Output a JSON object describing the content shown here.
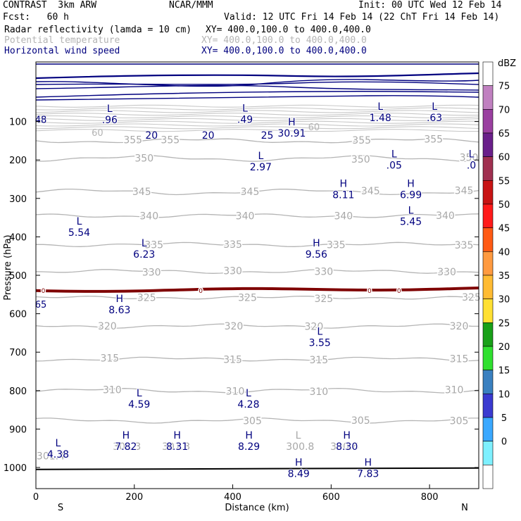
{
  "header": {
    "model": "CONTRAST  3km ARW",
    "org": "NCAR/MMM",
    "init": "Init: 00 UTC Wed 12 Feb 14",
    "fcst": "Fcst:   60 h",
    "valid": "Valid: 12 UTC Fri 14 Feb 14 (22 ChT Fri 14 Feb 14)",
    "fields": [
      {
        "name": "Radar reflectivity (lamda = 10 cm)",
        "xy": "XY= 400.0,100.0 to 400.0,400.0",
        "color": "#000000"
      },
      {
        "name": "Potential temperature",
        "xy": "XY= 400.0,100.0 to 400.0,400.0",
        "color": "#b4b4b4"
      },
      {
        "name": "Horizontal wind speed",
        "xy": "XY= 400.0,100.0 to 400.0,400.0",
        "color": "#00007f"
      }
    ]
  },
  "chart_data": {
    "type": "contour",
    "xlabel": "Distance (km)",
    "ylabel": "Pressure (hPa)",
    "xlim": [
      0,
      900
    ],
    "ylim": [
      1045,
      50
    ],
    "x_ticks": [
      0,
      200,
      400,
      600,
      800
    ],
    "y_ticks": [
      100,
      200,
      300,
      400,
      500,
      600,
      700,
      800,
      900,
      1000
    ],
    "x_end_labels": {
      "left": "S",
      "right": "N"
    },
    "theta_isentropes": [
      {
        "value": 355,
        "p": 150,
        "wiggle": 4
      },
      {
        "value": 350,
        "p": 196,
        "wiggle": 5
      },
      {
        "value": 345,
        "p": 283,
        "wiggle": 5
      },
      {
        "value": 340,
        "p": 345,
        "wiggle": 3
      },
      {
        "value": 335,
        "p": 420,
        "wiggle": 3
      },
      {
        "value": 330,
        "p": 490,
        "wiggle": 3
      },
      {
        "value": 325,
        "p": 558,
        "wiggle": 2
      },
      {
        "value": 320,
        "p": 632,
        "wiggle": 3
      },
      {
        "value": 315,
        "p": 718,
        "wiggle": 3
      },
      {
        "value": 310,
        "p": 800,
        "wiggle": 4
      },
      {
        "value": 305,
        "p": 878,
        "wiggle": 4
      }
    ],
    "theta_labels": [
      {
        "text": "355",
        "x": 197,
        "p": 147
      },
      {
        "text": "355",
        "x": 273,
        "p": 147
      },
      {
        "text": "355",
        "x": 662,
        "p": 148
      },
      {
        "text": "355",
        "x": 808,
        "p": 146
      },
      {
        "text": "350",
        "x": 220,
        "p": 195
      },
      {
        "text": "350",
        "x": 660,
        "p": 198
      },
      {
        "text": "350",
        "x": 880,
        "p": 193
      },
      {
        "text": "345",
        "x": 215,
        "p": 282
      },
      {
        "text": "345",
        "x": 435,
        "p": 282
      },
      {
        "text": "345",
        "x": 680,
        "p": 280
      },
      {
        "text": "345",
        "x": 870,
        "p": 279
      },
      {
        "text": "340",
        "x": 230,
        "p": 345
      },
      {
        "text": "340",
        "x": 425,
        "p": 345
      },
      {
        "text": "340",
        "x": 625,
        "p": 345
      },
      {
        "text": "340",
        "x": 832,
        "p": 344
      },
      {
        "text": "335",
        "x": 240,
        "p": 420
      },
      {
        "text": "335",
        "x": 400,
        "p": 419
      },
      {
        "text": "335",
        "x": 610,
        "p": 420
      },
      {
        "text": "335",
        "x": 870,
        "p": 421
      },
      {
        "text": "330",
        "x": 235,
        "p": 492
      },
      {
        "text": "330",
        "x": 400,
        "p": 488
      },
      {
        "text": "330",
        "x": 585,
        "p": 490
      },
      {
        "text": "330",
        "x": 835,
        "p": 491
      },
      {
        "text": "325",
        "x": 225,
        "p": 558
      },
      {
        "text": "325",
        "x": 430,
        "p": 558
      },
      {
        "text": "325",
        "x": 585,
        "p": 560
      },
      {
        "text": "325",
        "x": 885,
        "p": 557
      },
      {
        "text": "320",
        "x": 145,
        "p": 632
      },
      {
        "text": "320",
        "x": 402,
        "p": 632
      },
      {
        "text": "320",
        "x": 565,
        "p": 633
      },
      {
        "text": "320",
        "x": 860,
        "p": 632
      },
      {
        "text": "315",
        "x": 150,
        "p": 715
      },
      {
        "text": "315",
        "x": 400,
        "p": 719
      },
      {
        "text": "315",
        "x": 575,
        "p": 720
      },
      {
        "text": "315",
        "x": 860,
        "p": 717
      },
      {
        "text": "310",
        "x": 155,
        "p": 798
      },
      {
        "text": "310",
        "x": 405,
        "p": 801
      },
      {
        "text": "310",
        "x": 575,
        "p": 802
      },
      {
        "text": "310",
        "x": 850,
        "p": 798
      },
      {
        "text": "305",
        "x": 440,
        "p": 878
      },
      {
        "text": "305",
        "x": 660,
        "p": 877
      },
      {
        "text": "305",
        "x": 860,
        "p": 878
      }
    ],
    "wind_contours": [
      {
        "value": 20,
        "label_x": [
          235,
          350
        ]
      },
      {
        "value": 25,
        "label_x": [
          470
        ]
      }
    ],
    "zero_contour_label": "0",
    "zero_contour_p": 540,
    "extrema": [
      {
        "type": "L",
        "value": ".96",
        "x": 150,
        "p": 75
      },
      {
        "type": "L",
        "value": ".49",
        "x": 425,
        "p": 74
      },
      {
        "type": "L",
        "value": "1.48",
        "x": 700,
        "p": 70
      },
      {
        "type": "L",
        "value": ".63",
        "x": 810,
        "p": 70
      },
      {
        "type": "H",
        "value": "30.91",
        "x": 520,
        "p": 110
      },
      {
        "type": "L",
        "value": "2.97",
        "x": 457,
        "p": 198
      },
      {
        "type": "L",
        "value": ".05",
        "x": 728,
        "p": 193
      },
      {
        "type": "L",
        "value": ".0",
        "x": 885,
        "p": 193
      },
      {
        "type": "H",
        "value": "8.11",
        "x": 625,
        "p": 270
      },
      {
        "type": "H",
        "value": "6.99",
        "x": 762,
        "p": 270
      },
      {
        "type": "L",
        "value": "5.54",
        "x": 88,
        "p": 368
      },
      {
        "type": "L",
        "value": "5.45",
        "x": 762,
        "p": 340
      },
      {
        "type": "L",
        "value": "6.23",
        "x": 220,
        "p": 425
      },
      {
        "type": "H",
        "value": "9.56",
        "x": 570,
        "p": 425
      },
      {
        "type": "H",
        "value": "8.63",
        "x": 170,
        "p": 570
      },
      {
        "type": "L",
        "value": "3.55",
        "x": 577,
        "p": 655
      },
      {
        "type": "L",
        "value": "4.59",
        "x": 210,
        "p": 815
      },
      {
        "type": "L",
        "value": "4.28",
        "x": 432,
        "p": 815
      },
      {
        "type": "L",
        "value": "4.38",
        "x": 45,
        "p": 945
      },
      {
        "type": "H",
        "value": "7.82",
        "x": 183,
        "p": 925
      },
      {
        "type": "H",
        "value": "8.31",
        "x": 287,
        "p": 925
      },
      {
        "type": "H",
        "value": "8.29",
        "x": 433,
        "p": 925
      },
      {
        "type": "H",
        "value": "8.30",
        "x": 632,
        "p": 925
      },
      {
        "type": "H",
        "value": "8.49",
        "x": 534,
        "p": 995
      },
      {
        "type": "H",
        "value": "7.83",
        "x": 675,
        "p": 995
      }
    ],
    "theta_extrema": [
      {
        "type": "L",
        "value": "300.8",
        "x": 533,
        "p": 925,
        "typeHidden": false
      },
      {
        "text": "301.3",
        "x": 185,
        "p": 945
      },
      {
        "text": "301.3",
        "x": 285,
        "p": 945
      },
      {
        "text": "300.6",
        "x": 627,
        "p": 945
      },
      {
        "text": "301.4",
        "x": 30,
        "p": 970
      },
      {
        "text": "300.8",
        "x": 537,
        "p": 945
      }
    ],
    "edge_labels": [
      {
        "text": "48",
        "x": 10,
        "p": 94,
        "color": "#00007f"
      },
      {
        "text": "65",
        "x": 10,
        "p": 575,
        "color": "#00007f"
      },
      {
        "text": "60",
        "x": 125,
        "p": 128,
        "color": "#b4b4b4"
      },
      {
        "text": "60",
        "x": 565,
        "p": 114,
        "color": "#b4b4b4"
      }
    ],
    "colorbar": {
      "unit": "dBZ",
      "levels": [
        75,
        70,
        65,
        60,
        55,
        50,
        45,
        40,
        35,
        30,
        25,
        20,
        15,
        10,
        5,
        0
      ],
      "colors": [
        "#ffffff",
        "#c080c0",
        "#9a3fa0",
        "#6a1f8a",
        "#a03050",
        "#c81414",
        "#ff1a1a",
        "#ff5a14",
        "#ff9a40",
        "#ffbb33",
        "#ffe033",
        "#19a019",
        "#30e030",
        "#3a80c0",
        "#3a3ad0",
        "#3aa8ff",
        "#7ef0ff",
        "#ffffff"
      ]
    }
  }
}
